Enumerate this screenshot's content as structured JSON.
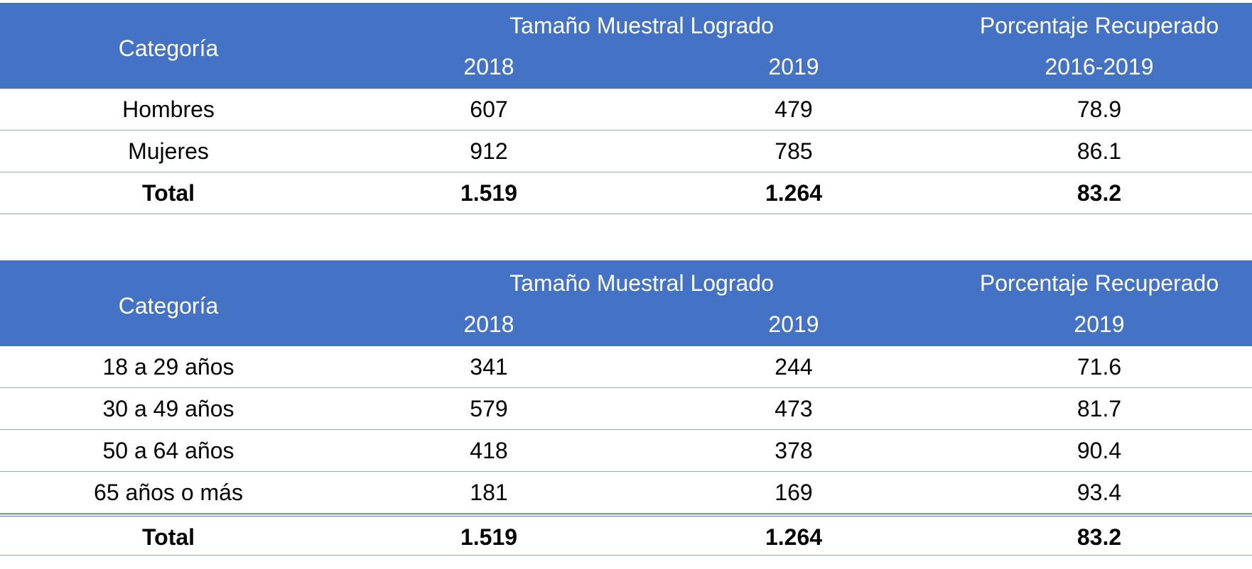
{
  "colors": {
    "header_bg": "#4472c4",
    "header_text": "#ffffff",
    "row_border": "#8eaadb"
  },
  "tables": [
    {
      "header": {
        "category": "Categoría",
        "group": "Tamaño Muestral Logrado",
        "pct": "Porcentaje Recuperado",
        "year1": "2018",
        "year2": "2019",
        "pct_period": "2016-2019"
      },
      "rows": [
        {
          "category": "Hombres",
          "v2018": "607",
          "v2019": "479",
          "pct": "78.9"
        },
        {
          "category": "Mujeres",
          "v2018": "912",
          "v2019": "785",
          "pct": "86.1"
        }
      ],
      "total": {
        "category": "Total",
        "v2018": "1.519",
        "v2019": "1.264",
        "pct": "83.2"
      }
    },
    {
      "header": {
        "category": "Categoría",
        "group": "Tamaño Muestral Logrado",
        "pct": "Porcentaje Recuperado",
        "year1": "2018",
        "year2": "2019",
        "pct_period": "2019"
      },
      "rows": [
        {
          "category": "18 a 29 años",
          "v2018": "341",
          "v2019": "244",
          "pct": "71.6"
        },
        {
          "category": "30 a 49 años",
          "v2018": "579",
          "v2019": "473",
          "pct": "81.7"
        },
        {
          "category": "50 a 64 años",
          "v2018": "418",
          "v2019": "378",
          "pct": "90.4"
        },
        {
          "category": "65 años o más",
          "v2018": "181",
          "v2019": "169",
          "pct": "93.4"
        }
      ],
      "total": {
        "category": "Total",
        "v2018": "1.519",
        "v2019": "1.264",
        "pct": "83.2"
      }
    }
  ]
}
